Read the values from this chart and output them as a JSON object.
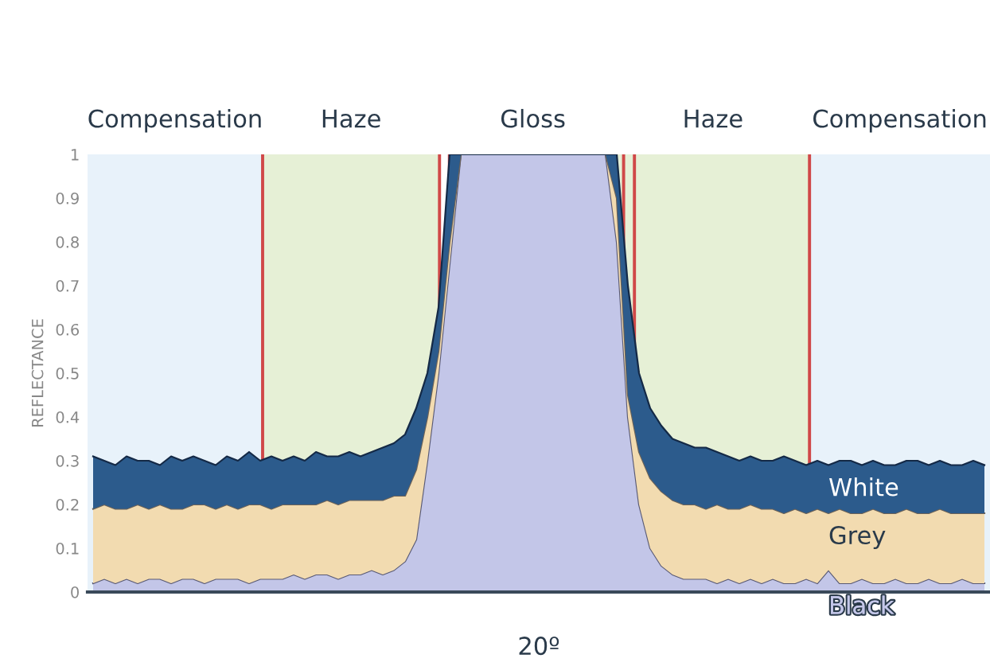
{
  "chart_data": {
    "type": "area",
    "stacked": true,
    "ylabel": "REFLECTANCE",
    "xlabel": "20º",
    "annotations": [
      "Compensation",
      "Haze",
      "Gloss",
      "Haze",
      "Compensation"
    ],
    "categories": [
      null,
      null,
      null,
      null,
      null,
      null,
      null,
      null,
      null,
      null,
      null,
      null,
      null,
      null,
      null,
      null,
      null,
      null,
      null,
      null,
      null,
      null,
      null,
      null,
      null,
      null,
      null,
      null,
      null,
      null,
      null,
      null,
      null,
      null,
      null,
      null,
      null,
      null,
      null,
      null,
      null,
      null,
      null,
      null,
      null,
      null,
      null,
      null,
      null,
      null,
      null,
      null,
      null,
      null,
      null,
      null,
      null,
      null,
      null,
      null,
      null,
      null,
      null,
      null,
      null,
      null,
      null,
      null,
      null,
      null,
      null,
      null,
      null,
      null,
      null,
      null,
      null,
      null,
      null,
      null,
      null
    ],
    "series": [
      {
        "name": "Black",
        "color": "#c3c6e8",
        "values": [
          0.02,
          0.03,
          0.02,
          0.03,
          0.02,
          0.03,
          0.03,
          0.02,
          0.03,
          0.03,
          0.02,
          0.03,
          0.03,
          0.03,
          0.02,
          0.03,
          0.03,
          0.03,
          0.04,
          0.03,
          0.04,
          0.04,
          0.03,
          0.04,
          0.04,
          0.05,
          0.04,
          0.05,
          0.07,
          0.12,
          0.3,
          0.5,
          0.75,
          1,
          1,
          1,
          1,
          1,
          1,
          1,
          1,
          1,
          1,
          1,
          1,
          1,
          1,
          0.8,
          0.4,
          0.2,
          0.1,
          0.06,
          0.04,
          0.03,
          0.03,
          0.03,
          0.02,
          0.03,
          0.02,
          0.03,
          0.02,
          0.03,
          0.02,
          0.02,
          0.03,
          0.02,
          0.05,
          0.02,
          0.02,
          0.03,
          0.02,
          0.02,
          0.03,
          0.02,
          0.02,
          0.03,
          0.02,
          0.02,
          0.03,
          0.02,
          0.02
        ]
      },
      {
        "name": "Grey",
        "color": "#f2dbb0",
        "values": [
          0.17,
          0.17,
          0.17,
          0.16,
          0.18,
          0.16,
          0.17,
          0.17,
          0.16,
          0.17,
          0.18,
          0.16,
          0.17,
          0.16,
          0.18,
          0.17,
          0.16,
          0.17,
          0.16,
          0.17,
          0.16,
          0.17,
          0.17,
          0.17,
          0.17,
          0.16,
          0.17,
          0.17,
          0.15,
          0.16,
          0.1,
          0.05,
          0.05,
          0,
          0,
          0,
          0,
          0,
          0,
          0,
          0,
          0,
          0,
          0,
          0,
          0,
          0,
          0.1,
          0.05,
          0.12,
          0.16,
          0.17,
          0.17,
          0.17,
          0.17,
          0.16,
          0.18,
          0.16,
          0.17,
          0.17,
          0.17,
          0.16,
          0.16,
          0.17,
          0.15,
          0.17,
          0.13,
          0.17,
          0.16,
          0.15,
          0.17,
          0.16,
          0.15,
          0.17,
          0.16,
          0.15,
          0.17,
          0.16,
          0.15,
          0.16,
          0.16
        ]
      },
      {
        "name": "White",
        "color": "#2c5b8c",
        "values": [
          0.12,
          0.1,
          0.1,
          0.12,
          0.1,
          0.11,
          0.09,
          0.12,
          0.11,
          0.11,
          0.1,
          0.1,
          0.11,
          0.11,
          0.12,
          0.1,
          0.12,
          0.1,
          0.11,
          0.1,
          0.12,
          0.1,
          0.11,
          0.11,
          0.1,
          0.11,
          0.12,
          0.12,
          0.14,
          0.14,
          0.1,
          0.1,
          0.2,
          0,
          0,
          0,
          0,
          0,
          0,
          0,
          0,
          0,
          0,
          0,
          0,
          0,
          0,
          0.1,
          0.25,
          0.18,
          0.16,
          0.15,
          0.14,
          0.14,
          0.13,
          0.14,
          0.12,
          0.12,
          0.11,
          0.11,
          0.11,
          0.11,
          0.13,
          0.11,
          0.11,
          0.11,
          0.11,
          0.11,
          0.12,
          0.11,
          0.11,
          0.11,
          0.11,
          0.11,
          0.12,
          0.11,
          0.11,
          0.11,
          0.11,
          0.12,
          0.11
        ]
      }
    ],
    "ylim": [
      0,
      1
    ],
    "yticks": [
      0,
      0.1,
      0.2,
      0.3,
      0.4,
      0.5,
      0.6,
      0.7,
      0.8,
      0.9,
      1
    ],
    "grid": false,
    "tick_labels": "y"
  }
}
